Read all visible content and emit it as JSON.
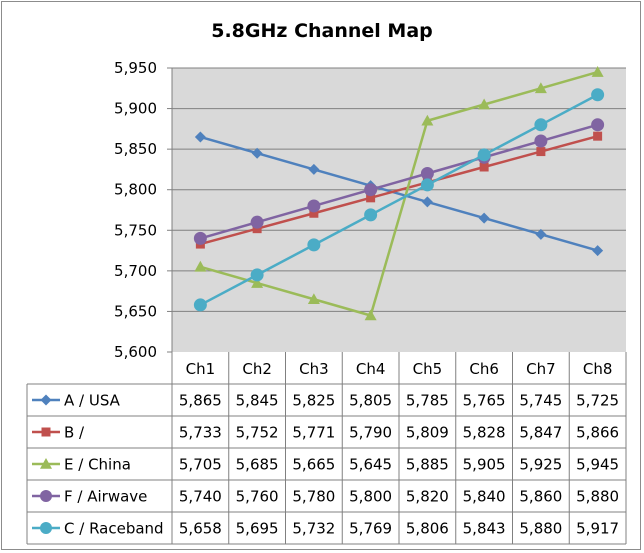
{
  "chart_data": {
    "type": "line",
    "title": "5.8GHz Channel Map",
    "xlabel": "",
    "ylabel": "",
    "ylim": [
      5600,
      5950
    ],
    "y_step": 50,
    "y_tick_labels": [
      "5,600",
      "5,650",
      "5,700",
      "5,750",
      "5,800",
      "5,850",
      "5,900",
      "5,950"
    ],
    "grid": true,
    "data_table": true,
    "categories": [
      "Ch1",
      "Ch2",
      "Ch3",
      "Ch4",
      "Ch5",
      "Ch6",
      "Ch7",
      "Ch8"
    ],
    "series": [
      {
        "name": "A / USA",
        "marker": "diamond",
        "color": "#4f81bd",
        "values": [
          5865,
          5845,
          5825,
          5805,
          5785,
          5765,
          5745,
          5725
        ],
        "labels": [
          "5,865",
          "5,845",
          "5,825",
          "5,805",
          "5,785",
          "5,765",
          "5,745",
          "5,725"
        ]
      },
      {
        "name": "B /",
        "marker": "square",
        "color": "#c0504d",
        "values": [
          5733,
          5752,
          5771,
          5790,
          5809,
          5828,
          5847,
          5866
        ],
        "labels": [
          "5,733",
          "5,752",
          "5,771",
          "5,790",
          "5,809",
          "5,828",
          "5,847",
          "5,866"
        ]
      },
      {
        "name": "E / China",
        "marker": "triangle",
        "color": "#9bbb59",
        "values": [
          5705,
          5685,
          5665,
          5645,
          5885,
          5905,
          5925,
          5945
        ],
        "labels": [
          "5,705",
          "5,685",
          "5,665",
          "5,645",
          "5,885",
          "5,905",
          "5,925",
          "5,945"
        ]
      },
      {
        "name": "F / Airwave",
        "marker": "circle",
        "color": "#8064a2",
        "values": [
          5740,
          5760,
          5780,
          5800,
          5820,
          5840,
          5860,
          5880
        ],
        "labels": [
          "5,740",
          "5,760",
          "5,780",
          "5,800",
          "5,820",
          "5,840",
          "5,860",
          "5,880"
        ]
      },
      {
        "name": "C / Raceband",
        "marker": "circle",
        "color": "#4bacc6",
        "values": [
          5658,
          5695,
          5732,
          5769,
          5806,
          5843,
          5880,
          5917
        ],
        "labels": [
          "5,658",
          "5,695",
          "5,732",
          "5,769",
          "5,806",
          "5,843",
          "5,880",
          "5,917"
        ]
      }
    ]
  }
}
